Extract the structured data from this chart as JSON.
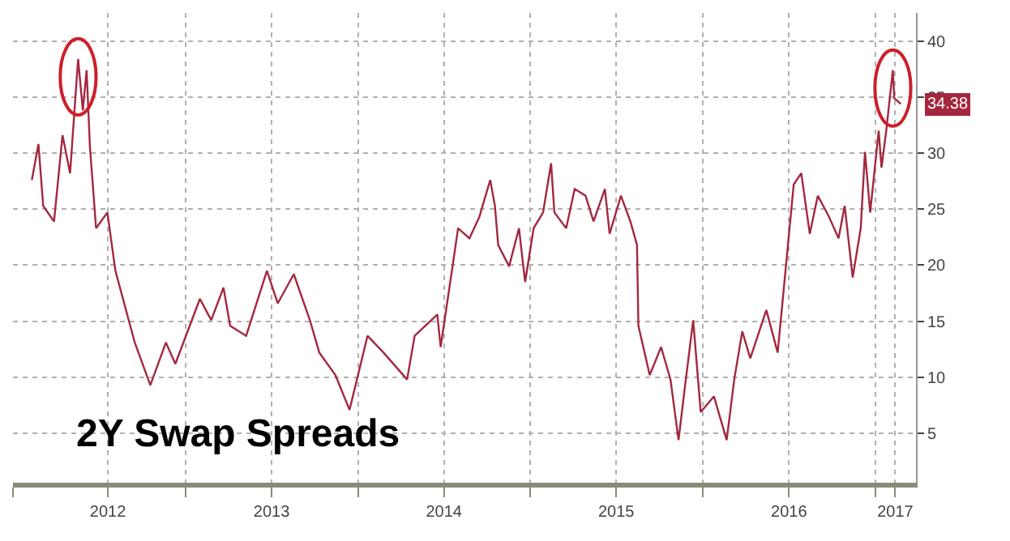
{
  "chart_data": {
    "type": "line",
    "title": "2Y Swap Spreads",
    "x": [
      "2012-02-10",
      "2012-02-24",
      "2012-03-05",
      "2012-03-28",
      "2012-04-15",
      "2012-05-01",
      "2012-05-18",
      "2012-05-28",
      "2012-06-05",
      "2012-06-12",
      "2012-06-25",
      "2012-07-19",
      "2012-08-05",
      "2012-09-15",
      "2012-10-18",
      "2012-11-20",
      "2012-12-10",
      "2013-01-31",
      "2013-02-24",
      "2013-03-22",
      "2013-04-05",
      "2013-05-09",
      "2013-06-22",
      "2013-07-15",
      "2013-08-18",
      "2013-09-21",
      "2013-10-11",
      "2013-11-14",
      "2013-12-14",
      "2014-01-01",
      "2014-01-21",
      "2014-02-24",
      "2014-04-15",
      "2014-05-01",
      "2014-06-18",
      "2014-06-25",
      "2014-07-22",
      "2014-08-01",
      "2014-08-25",
      "2014-09-15",
      "2014-10-08",
      "2014-10-18",
      "2014-10-25",
      "2014-11-17",
      "2014-12-08",
      "2014-12-21",
      "2015-01-08",
      "2015-01-28",
      "2015-02-14",
      "2015-02-21",
      "2015-03-18",
      "2015-04-05",
      "2015-04-28",
      "2015-05-15",
      "2015-06-08",
      "2015-06-18",
      "2015-07-12",
      "2015-08-01",
      "2015-08-15",
      "2015-08-18",
      "2015-09-11",
      "2015-10-05",
      "2015-10-25",
      "2015-11-11",
      "2015-11-25",
      "2015-12-12",
      "2015-12-28",
      "2016-01-25",
      "2016-02-21",
      "2016-03-08",
      "2016-03-25",
      "2016-04-11",
      "2016-05-15",
      "2016-06-08",
      "2016-06-18",
      "2016-07-12",
      "2016-07-28",
      "2016-08-15",
      "2016-09-01",
      "2016-09-25",
      "2016-10-15",
      "2016-10-28",
      "2016-11-14",
      "2016-12-01",
      "2016-12-10",
      "2016-12-21",
      "2017-01-08",
      "2017-01-14",
      "2017-01-24",
      "2017-02-07",
      "2017-02-10",
      "2017-02-24"
    ],
    "series": [
      {
        "color": "#a3283f",
        "values": [
          27.6,
          30.8,
          25.3,
          23.9,
          31.6,
          28.2,
          38.4,
          33.8,
          37.4,
          30.6,
          23.3,
          24.7,
          19.5,
          13.1,
          9.3,
          13.1,
          11.2,
          17.0,
          15.1,
          18.0,
          14.6,
          13.7,
          19.5,
          16.6,
          19.2,
          15.1,
          12.2,
          10.2,
          7.1,
          10.2,
          13.7,
          12.2,
          9.8,
          13.7,
          15.6,
          12.7,
          20.4,
          23.3,
          22.4,
          24.3,
          27.6,
          25.3,
          21.8,
          19.9,
          23.3,
          18.5,
          23.3,
          24.7,
          29.1,
          24.7,
          23.3,
          26.8,
          26.2,
          23.9,
          26.8,
          22.8,
          26.2,
          23.9,
          21.8,
          14.6,
          10.2,
          12.7,
          9.8,
          4.4,
          9.3,
          15.1,
          6.9,
          8.3,
          4.4,
          9.8,
          14.1,
          11.7,
          16.0,
          12.2,
          16.6,
          27.2,
          28.2,
          22.8,
          26.2,
          24.3,
          22.4,
          25.3,
          18.9,
          23.3,
          30.1,
          24.7,
          32.0,
          28.7,
          32.0,
          37.4,
          34.9,
          34.38
        ]
      }
    ],
    "annotations": [
      {
        "text": "34.38",
        "x": "2017-02-24",
        "y": 34.38
      }
    ],
    "xlim": [
      "2012-01-01",
      "2017-03-28"
    ],
    "xticks": [
      {
        "value": "2012-01-01",
        "label": null
      },
      {
        "value": "2012-07-20",
        "label": "2012"
      },
      {
        "value": "2013-01-01",
        "label": null
      },
      {
        "value": "2013-07-02",
        "label": "2013"
      },
      {
        "value": "2014-01-01",
        "label": null
      },
      {
        "value": "2014-07-02",
        "label": "2014"
      },
      {
        "value": "2015-01-01",
        "label": null
      },
      {
        "value": "2015-07-02",
        "label": "2015"
      },
      {
        "value": "2016-01-01",
        "label": null
      },
      {
        "value": "2016-07-02",
        "label": "2016"
      },
      {
        "value": "2017-01-01",
        "label": null
      },
      {
        "value": "2017-02-12",
        "label": "2017"
      }
    ],
    "ylim": [
      0.6,
      42.5
    ],
    "yticks": [
      5,
      10,
      15,
      20,
      25,
      30,
      35,
      40
    ],
    "grid": true,
    "marker": "none",
    "line_style": "solid"
  }
}
